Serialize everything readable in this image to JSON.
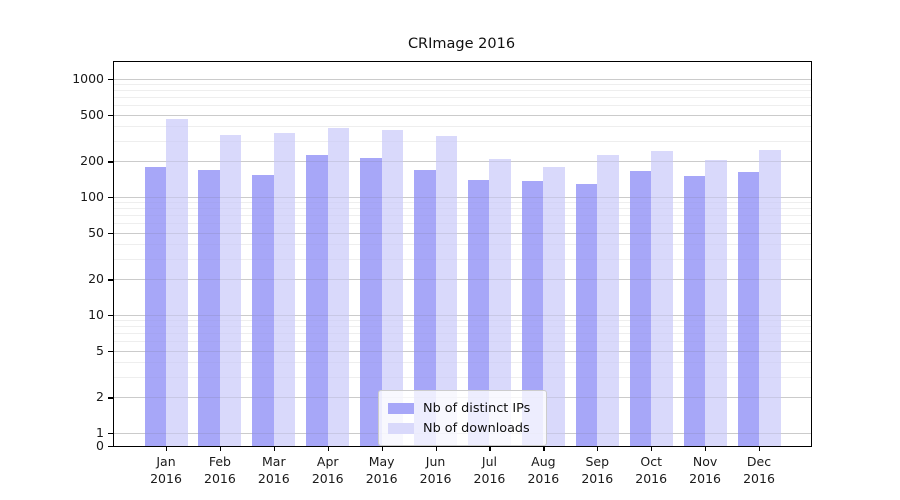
{
  "title": "CRImage 2016",
  "chart_data": {
    "type": "bar",
    "title": "CRImage 2016",
    "categories": [
      "Jan 2016",
      "Feb 2016",
      "Mar 2016",
      "Apr 2016",
      "May 2016",
      "Jun 2016",
      "Jul 2016",
      "Aug 2016",
      "Sep 2016",
      "Oct 2016",
      "Nov 2016",
      "Dec 2016"
    ],
    "series": [
      {
        "name": "Nb of distinct IPs",
        "color": "#a7a7f8",
        "values": [
          180,
          170,
          155,
          225,
          215,
          170,
          140,
          138,
          130,
          167,
          150,
          162
        ]
      },
      {
        "name": "Nb of downloads",
        "color": "#d9d9fb",
        "values": [
          460,
          335,
          350,
          385,
          370,
          330,
          210,
          178,
          225,
          245,
          205,
          250
        ]
      }
    ],
    "yscale": "symlog",
    "yticks": [
      0,
      1,
      2,
      5,
      10,
      20,
      50,
      100,
      200,
      500,
      1000
    ],
    "ytick_labels": [
      "0",
      "1",
      "2",
      "5",
      "10",
      "20",
      "50",
      "100",
      "200",
      "500",
      "1000"
    ],
    "minor_gridlines": [
      3,
      4,
      6,
      7,
      8,
      9,
      30,
      40,
      60,
      70,
      80,
      90,
      300,
      400,
      600,
      700,
      800,
      900
    ],
    "ylim": [
      0,
      1400
    ],
    "xlabel": "",
    "ylabel": "",
    "grid": true,
    "legend_position": "lower-center"
  },
  "colors": {
    "bar_dark": "#a7a7f8",
    "bar_light": "#d9d9fb",
    "grid_major": "#d3d3d3",
    "grid_minor": "#f1f1f1",
    "spine": "#000000",
    "text": "#1a1a1a",
    "legend_border": "#cccccc",
    "legend_bg": "#ffffff"
  }
}
